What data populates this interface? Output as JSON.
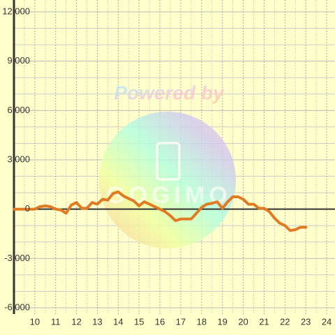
{
  "chart_data": {
    "type": "line",
    "watermark": {
      "text": "Powered by",
      "logo": "GOGIMO"
    },
    "x": [
      9,
      9.5,
      10,
      10.25,
      10.5,
      10.75,
      11,
      11.25,
      11.5,
      11.75,
      12,
      12.25,
      12.5,
      12.75,
      13,
      13.25,
      13.5,
      13.75,
      14,
      14.25,
      14.5,
      14.75,
      15,
      15.25,
      15.5,
      15.75,
      16,
      16.25,
      16.5,
      16.75,
      17,
      17.25,
      17.5,
      17.75,
      18,
      18.25,
      18.5,
      18.75,
      19,
      19.25,
      19.5,
      19.75,
      20,
      20.25,
      20.5,
      20.75,
      21,
      21.25,
      21.5,
      21.75,
      22,
      22.25,
      22.5,
      22.75,
      23
    ],
    "values": [
      0,
      0,
      0,
      150,
      200,
      150,
      0,
      -50,
      -250,
      250,
      400,
      50,
      50,
      400,
      300,
      600,
      550,
      950,
      1050,
      800,
      650,
      500,
      200,
      450,
      300,
      150,
      0,
      -150,
      -400,
      -700,
      -600,
      -600,
      -600,
      -250,
      100,
      300,
      350,
      450,
      50,
      450,
      750,
      750,
      600,
      300,
      300,
      50,
      50,
      -150,
      -550,
      -850,
      -1000,
      -1300,
      -1250,
      -1100,
      -1100
    ],
    "color": "#e07b24",
    "xlim": [
      9,
      24.4
    ],
    "xticks": [
      10,
      11,
      12,
      13,
      14,
      15,
      16,
      17,
      18,
      19,
      20,
      21,
      22,
      23,
      24
    ],
    "ylim": [
      -6000,
      12000
    ],
    "yticks": [
      {
        "value": -6000,
        "label": "-6,000"
      },
      {
        "value": -3000,
        "label": "-3,000"
      },
      0,
      {
        "value": 3000,
        "label": "3,000"
      },
      {
        "value": 6000,
        "label": "6,000"
      },
      {
        "value": 9000,
        "label": "9,000"
      },
      {
        "value": 12000,
        "label": "12,000"
      }
    ],
    "grid": true
  }
}
